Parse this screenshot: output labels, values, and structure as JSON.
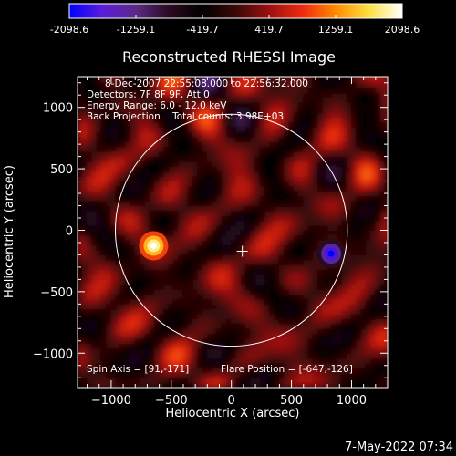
{
  "colorbar": {
    "tick_labels": [
      "-2098.6",
      "-1259.1",
      "-419.7",
      "419.7",
      "1259.1",
      "2098.6"
    ],
    "range": [
      -2098.6,
      2098.6
    ],
    "colormap": [
      "#0000ff",
      "#5a1dd8",
      "#5a2a86",
      "#2a0a20",
      "#000000",
      "#3a0808",
      "#9a1010",
      "#ee2a10",
      "#ff8a00",
      "#ffe040",
      "#ffffff"
    ]
  },
  "chart_data": {
    "type": "heatmap",
    "title": "Reconstructed RHESSI Image",
    "xlabel": "Heliocentric X (arcsec)",
    "ylabel": "Heliocentric Y (arcsec)",
    "xlim": [
      -1280,
      1300
    ],
    "ylim": [
      -1280,
      1250
    ],
    "x_ticks": [
      -1000,
      -500,
      0,
      500,
      1000
    ],
    "y_ticks": [
      -1000,
      -500,
      0,
      500,
      1000
    ],
    "x_tick_labels": [
      "−1000",
      "−500",
      "0",
      "500",
      "1000"
    ],
    "y_tick_labels": [
      "−1000",
      "−500",
      "0",
      "500",
      "1000"
    ],
    "solar_limb": {
      "center": [
        0,
        0
      ],
      "radius_arcsec": 965
    },
    "center_marker": [
      91,
      -171
    ],
    "sources": [
      {
        "kind": "bright",
        "x": -647,
        "y": -126,
        "value": 2098.6
      },
      {
        "kind": "dark",
        "x": 830,
        "y": -190,
        "value": -2098.6
      }
    ],
    "info_lines": [
      "8-Dec-2007 22:55:08.000 to 22:56:32.000",
      "Detectors: 7F 8F 9F, Att 0",
      "Energy Range: 6.0 - 12.0 keV",
      "Back Projection    Total counts: 3.98E+03"
    ],
    "spin_axis_label": "Spin Axis = [91,-171]",
    "flare_position_label": "Flare Position = [-647,-126]"
  },
  "timestamp": "7-May-2022 07:34"
}
